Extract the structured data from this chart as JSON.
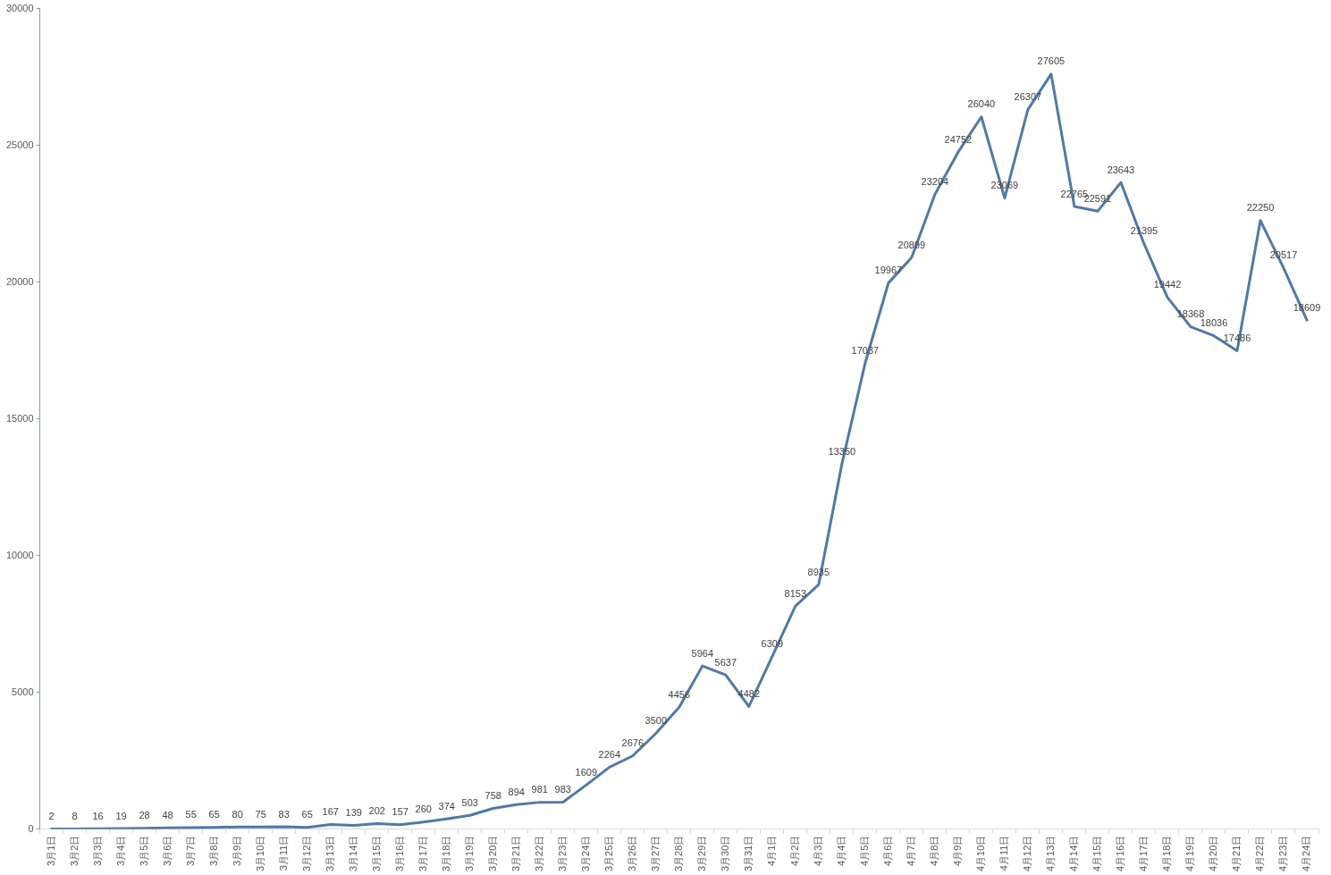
{
  "chart_data": {
    "type": "line",
    "categories": [
      "3月1日",
      "3月2日",
      "3月3日",
      "3月4日",
      "3月5日",
      "3月6日",
      "3月7日",
      "3月8日",
      "3月9日",
      "3月10日",
      "3月11日",
      "3月12日",
      "3月13日",
      "3月14日",
      "3月15日",
      "3月16日",
      "3月17日",
      "3月18日",
      "3月19日",
      "3月20日",
      "3月21日",
      "3月22日",
      "3月23日",
      "3月24日",
      "3月25日",
      "3月26日",
      "3月27日",
      "3月28日",
      "3月29日",
      "3月30日",
      "3月31日",
      "4月1日",
      "4月2日",
      "4月3日",
      "4月4日",
      "4月5日",
      "4月6日",
      "4月7日",
      "4月8日",
      "4月9日",
      "4月10日",
      "4月11日",
      "4月12日",
      "4月13日",
      "4月14日",
      "4月15日",
      "4月16日",
      "4月17日",
      "4月18日",
      "4月19日",
      "4月20日",
      "4月21日",
      "4月22日",
      "4月23日",
      "4月24日"
    ],
    "values": [
      2,
      8,
      16,
      19,
      28,
      48,
      55,
      65,
      80,
      75,
      83,
      65,
      167,
      139,
      202,
      157,
      260,
      374,
      503,
      758,
      894,
      981,
      983,
      1609,
      2264,
      2676,
      3500,
      4456,
      5964,
      5637,
      4482,
      6309,
      8153,
      8935,
      13350,
      17037,
      19967,
      20899,
      23204,
      24752,
      26040,
      23069,
      26307,
      27605,
      22765,
      22591,
      23643,
      21395,
      19442,
      18368,
      18036,
      17486,
      22250,
      20517,
      18609
    ],
    "color": "#4f7aa8",
    "ylim": [
      0,
      30000
    ],
    "yticks": [
      0,
      5000,
      10000,
      15000,
      20000,
      25000,
      30000
    ],
    "data_labels": true,
    "marker": "none",
    "line_style": "solid",
    "grid": false,
    "legend": false
  }
}
